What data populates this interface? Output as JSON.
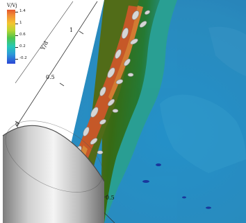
{
  "legend": {
    "title": "V/Vj",
    "labels": [
      "1.4",
      "1",
      "0.6",
      "0.2",
      "-0.2"
    ]
  },
  "axes": {
    "y_title": "Y/d",
    "y_ticks": [
      "1",
      "0.5",
      "0"
    ],
    "x_ticks": [
      "0.5"
    ]
  }
}
